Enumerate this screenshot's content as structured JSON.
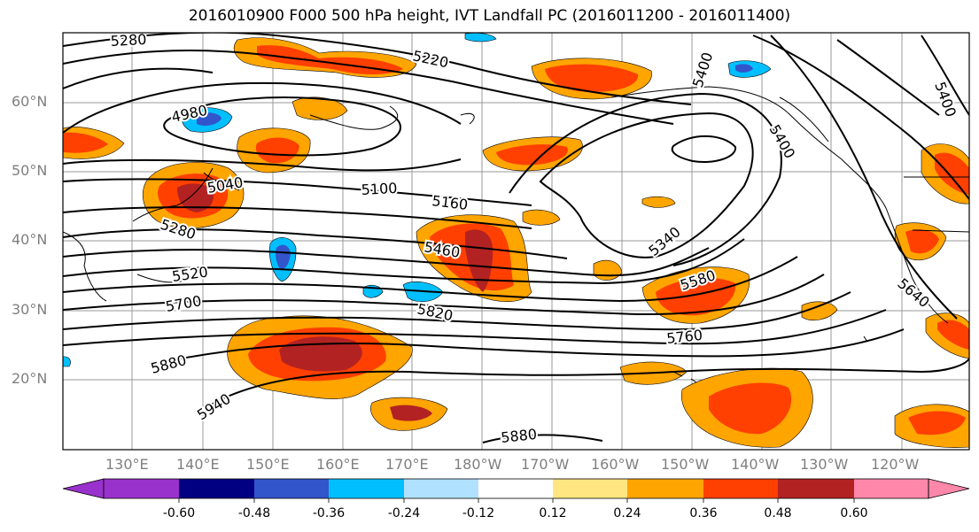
{
  "title": "2016010900 F000 500 hPa height, IVT Landfall PC (2016011200 - 2016011400)",
  "lat_labels": [
    "60°N",
    "50°N",
    "40°N",
    "30°N",
    "20°N"
  ],
  "lon_labels": [
    "130°E",
    "140°E",
    "150°E",
    "160°E",
    "170°E",
    "180°W",
    "170°W",
    "160°W",
    "150°W",
    "140°W",
    "130°W",
    "120°W"
  ],
  "contour_labels": [
    "5280",
    "5220",
    "4980",
    "5040",
    "5100",
    "5160",
    "5280",
    "5460",
    "5520",
    "5700",
    "5820",
    "5880",
    "5940",
    "5880",
    "5400",
    "5400",
    "5400",
    "5340",
    "5580",
    "5640",
    "5760"
  ],
  "colorbar": {
    "ticks": [
      "-0.60",
      "-0.48",
      "-0.36",
      "-0.24",
      "-0.12",
      "0.12",
      "0.24",
      "0.36",
      "0.48",
      "0.60"
    ],
    "colors": [
      "#9932cc",
      "#000080",
      "#3355cc",
      "#00bfff",
      "#b0e2ff",
      "#ffffff",
      "#ffe680",
      "#ffa500",
      "#ff4000",
      "#b22222",
      "#ff88aa"
    ]
  }
}
